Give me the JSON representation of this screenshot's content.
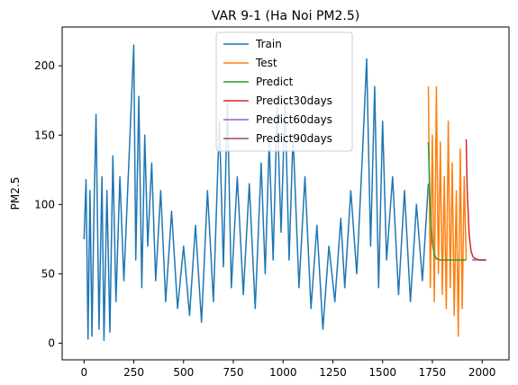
{
  "chart_data": {
    "type": "line",
    "title": "VAR 9-1 (Ha Noi PM2.5)",
    "xlabel": "",
    "ylabel": "PM2.5",
    "xlim": [
      -110,
      2135
    ],
    "ylim": [
      -12,
      228
    ],
    "xticks": [
      0,
      250,
      500,
      750,
      1000,
      1250,
      1500,
      1750,
      2000
    ],
    "yticks": [
      0,
      50,
      100,
      150,
      200
    ],
    "grid": false,
    "legend_position": "upper center",
    "series": [
      {
        "name": "Train",
        "color": "#1f77b4",
        "x": [
          0,
          10,
          20,
          30,
          40,
          50,
          60,
          75,
          90,
          100,
          115,
          130,
          145,
          160,
          180,
          200,
          225,
          250,
          260,
          275,
          290,
          305,
          320,
          340,
          360,
          385,
          410,
          440,
          470,
          500,
          530,
          560,
          590,
          620,
          650,
          680,
          700,
          720,
          740,
          770,
          800,
          830,
          860,
          890,
          910,
          930,
          950,
          970,
          990,
          1010,
          1030,
          1050,
          1080,
          1110,
          1140,
          1170,
          1200,
          1230,
          1260,
          1290,
          1310,
          1340,
          1370,
          1400,
          1420,
          1440,
          1460,
          1480,
          1500,
          1520,
          1550,
          1580,
          1610,
          1640,
          1670,
          1700,
          1730
        ],
        "y": [
          75,
          118,
          3,
          110,
          5,
          95,
          165,
          10,
          120,
          2,
          110,
          8,
          135,
          30,
          120,
          45,
          130,
          215,
          60,
          178,
          40,
          150,
          70,
          130,
          45,
          110,
          30,
          95,
          25,
          70,
          20,
          85,
          15,
          110,
          30,
          160,
          55,
          175,
          40,
          120,
          35,
          115,
          25,
          130,
          50,
          145,
          60,
          170,
          80,
          175,
          60,
          150,
          40,
          120,
          25,
          85,
          10,
          70,
          30,
          90,
          40,
          110,
          50,
          140,
          205,
          70,
          185,
          40,
          160,
          60,
          120,
          35,
          110,
          30,
          100,
          45,
          115
        ]
      },
      {
        "name": "Test",
        "color": "#ff7f0e",
        "x": [
          1730,
          1740,
          1750,
          1760,
          1770,
          1780,
          1790,
          1800,
          1810,
          1820,
          1830,
          1840,
          1850,
          1860,
          1870,
          1880,
          1890,
          1900,
          1910,
          1920
        ],
        "y": [
          185,
          40,
          150,
          30,
          185,
          50,
          145,
          35,
          120,
          25,
          160,
          40,
          130,
          20,
          110,
          5,
          140,
          25,
          120,
          60
        ]
      },
      {
        "name": "Predict",
        "color": "#2ca02c",
        "x": [
          1730,
          1740,
          1750,
          1760,
          1770,
          1790,
          1810,
          1850,
          1900,
          1920
        ],
        "y": [
          145,
          95,
          72,
          64,
          61,
          60,
          60,
          60,
          60,
          60
        ]
      },
      {
        "name": "Predict30days",
        "color": "#d62728",
        "x": [
          1920,
          1925,
          1935,
          1945,
          1955,
          1965,
          1985,
          2005,
          2020
        ],
        "y": [
          147,
          110,
          78,
          66,
          62,
          61,
          60,
          60,
          60
        ]
      },
      {
        "name": "Predict60days",
        "color": "#9467bd",
        "x": [
          1950,
          1980,
          2020
        ],
        "y": [
          60,
          60,
          60
        ]
      },
      {
        "name": "Predict90days",
        "color": "#8c564b",
        "x": [
          1980,
          2000,
          2020
        ],
        "y": [
          60,
          60,
          60
        ]
      }
    ]
  }
}
